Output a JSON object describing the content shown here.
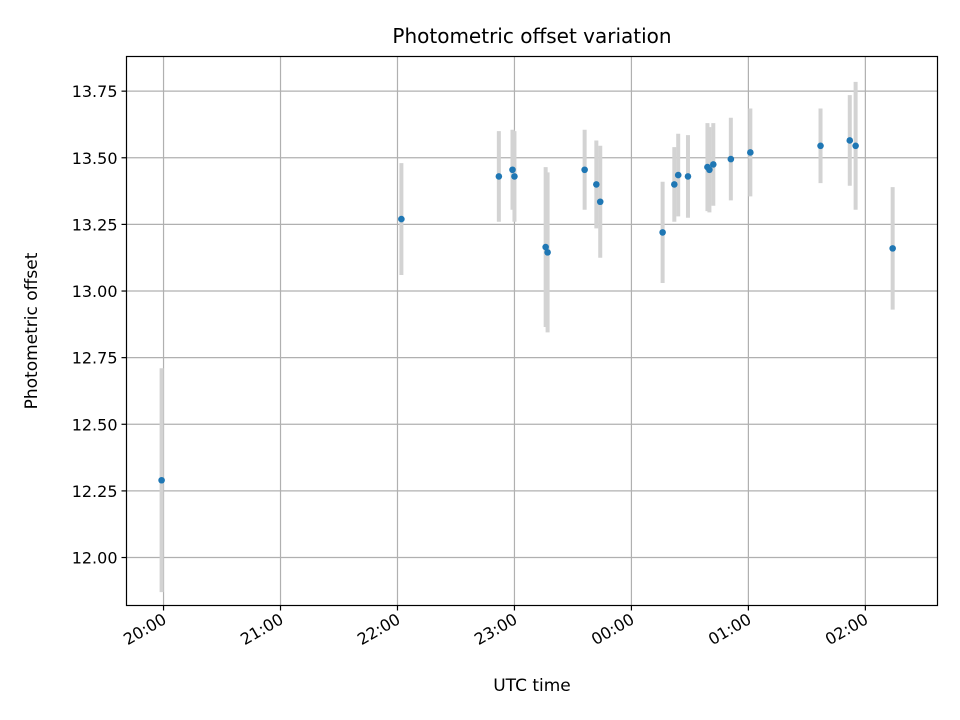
{
  "chart_data": {
    "type": "scatter",
    "title": "Photometric offset variation",
    "xlabel": "UTC time",
    "ylabel": "Photometric offset",
    "grid": true,
    "x_ticks": [
      "20:00",
      "21:00",
      "22:00",
      "23:00",
      "00:00",
      "01:00",
      "02:00"
    ],
    "y_ticks": [
      "12.00",
      "12.25",
      "12.50",
      "12.75",
      "13.00",
      "13.25",
      "13.50",
      "13.75"
    ],
    "xlim": [
      "19:41",
      "02:37"
    ],
    "ylim": [
      11.82,
      13.88
    ],
    "colors": {
      "point": "#1f77b4",
      "errorbar": "#d3d3d3",
      "grid": "#b0b0b0",
      "axes": "#000000"
    },
    "points": [
      {
        "x": "19:59",
        "y": 12.29,
        "err": 0.42
      },
      {
        "x": "22:02",
        "y": 13.27,
        "err": 0.21
      },
      {
        "x": "22:52",
        "y": 13.43,
        "err": 0.17
      },
      {
        "x": "22:59",
        "y": 13.455,
        "err": 0.15
      },
      {
        "x": "23:00",
        "y": 13.43,
        "err": 0.17
      },
      {
        "x": "23:16",
        "y": 13.165,
        "err": 0.3
      },
      {
        "x": "23:17",
        "y": 13.145,
        "err": 0.3
      },
      {
        "x": "23:36",
        "y": 13.455,
        "err": 0.15
      },
      {
        "x": "23:42",
        "y": 13.4,
        "err": 0.165
      },
      {
        "x": "23:44",
        "y": 13.335,
        "err": 0.21
      },
      {
        "x": "00:16",
        "y": 13.22,
        "err": 0.19
      },
      {
        "x": "00:22",
        "y": 13.4,
        "err": 0.14
      },
      {
        "x": "00:24",
        "y": 13.435,
        "err": 0.155
      },
      {
        "x": "00:29",
        "y": 13.43,
        "err": 0.155
      },
      {
        "x": "00:39",
        "y": 13.465,
        "err": 0.165
      },
      {
        "x": "00:40",
        "y": 13.455,
        "err": 0.16
      },
      {
        "x": "00:42",
        "y": 13.475,
        "err": 0.155
      },
      {
        "x": "00:51",
        "y": 13.495,
        "err": 0.155
      },
      {
        "x": "01:01",
        "y": 13.52,
        "err": 0.165
      },
      {
        "x": "01:37",
        "y": 13.545,
        "err": 0.14
      },
      {
        "x": "01:52",
        "y": 13.565,
        "err": 0.17
      },
      {
        "x": "01:55",
        "y": 13.545,
        "err": 0.24
      },
      {
        "x": "02:14",
        "y": 13.16,
        "err": 0.23
      }
    ]
  }
}
